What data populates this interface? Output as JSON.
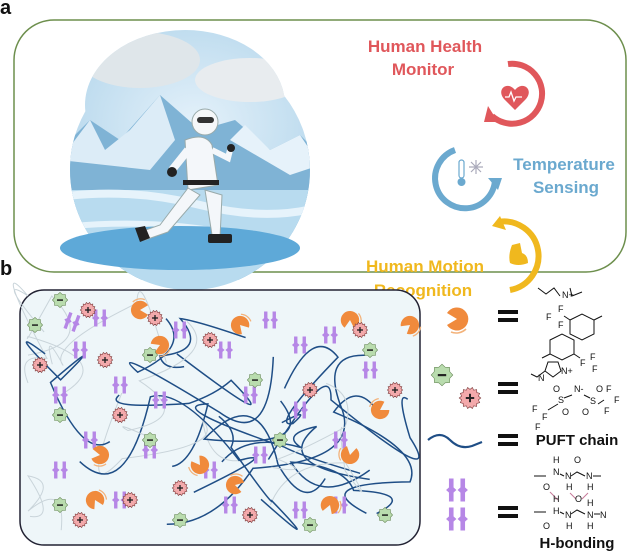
{
  "panel_a": {
    "label": "a",
    "features": [
      {
        "line1": "Human Health",
        "line2": "Monitor",
        "color": "#e0575b",
        "icon": "heart-rate-cycle-icon"
      },
      {
        "line1": "Temperature",
        "line2": "Sensing",
        "color": "#6ba9cf",
        "icon": "thermometer-snowflake-cycle-icon"
      },
      {
        "line1": "Human Motion",
        "line2": "Recognition",
        "color": "#f0b81e",
        "icon": "flexed-arm-cycle-icon"
      }
    ],
    "illustration": "skier-running-on-snowy-mountain"
  },
  "panel_b": {
    "label": "b",
    "legend": [
      {
        "symbol": "orange-pacman-fluorinated-ammonium",
        "equals": "=",
        "structure_atoms": [
          "N+",
          "F",
          "F",
          "F",
          "F",
          "F",
          "F"
        ]
      },
      {
        "symbol": "ionic-liquid-ions",
        "equals": "=",
        "structure_atoms": [
          "N",
          "N+",
          "N-",
          "S",
          "S",
          "O",
          "O",
          "O",
          "O",
          "F",
          "F",
          "F",
          "F",
          "F",
          "F"
        ]
      },
      {
        "symbol": "polymer-chain",
        "equals": "=",
        "text": "PUFT chain"
      },
      {
        "symbol": "hydrogen-bond-pairs",
        "equals": "=",
        "text": "H-bonding",
        "structure_atoms": [
          "H",
          "H",
          "O",
          "N",
          "N",
          "N",
          "H",
          "H",
          "O",
          "O",
          "H",
          "H",
          "N",
          "N",
          "N",
          "O",
          "H",
          "H"
        ]
      }
    ],
    "colors": {
      "chain": "#1f4e86",
      "anion": "#b9dcae",
      "cation": "#f3a9ab",
      "pacman": "#f08a3c",
      "hbond": "#b687e6",
      "box_fill": "#eef6f9"
    }
  }
}
